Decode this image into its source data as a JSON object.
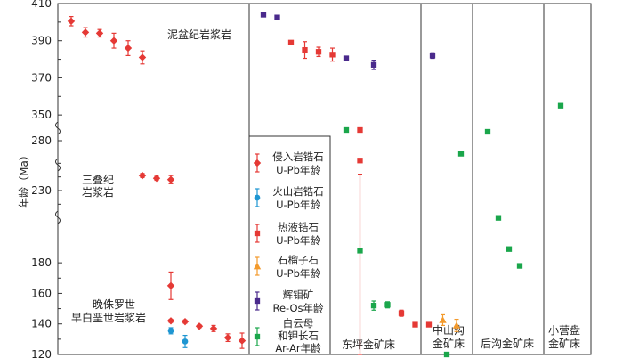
{
  "chart_data": {
    "type": "scatter",
    "ylabel": "年龄（Ma）",
    "y_ticks": [
      "410",
      "390",
      "370",
      "350",
      "280",
      "230",
      "180",
      "160",
      "140",
      "120"
    ],
    "y_axis_breaks": [
      "350–280",
      "280–230",
      "230–180"
    ],
    "panels": [
      {
        "label": "",
        "sublabels": [
          "泥盆纪岩浆岩",
          "三叠纪",
          "岩浆岩",
          "晚侏罗世–",
          "早白垩世岩浆岩"
        ]
      },
      {
        "label": "东坪金矿床"
      },
      {
        "label": "中山沟",
        "label2": "金矿床"
      },
      {
        "label": "后沟金矿床"
      },
      {
        "label": "小营盘",
        "label2": "金矿床"
      }
    ],
    "legend": [
      {
        "marker": "diamond",
        "color": "#e53935",
        "line1": "侵入岩锆石",
        "line2": "U-Pb年龄"
      },
      {
        "marker": "circle",
        "color": "#1e96d2",
        "line1": "火山岩锆石",
        "line2": "U-Pb年龄"
      },
      {
        "marker": "square",
        "color": "#e53935",
        "line1": "热液锆石",
        "line2": "U-Pb年龄"
      },
      {
        "marker": "triangle",
        "color": "#f39a2c",
        "line1": "石榴子石",
        "line2": "U-Pb年龄"
      },
      {
        "marker": "square",
        "color": "#4a2a8c",
        "line1": "辉钼矿",
        "line2": "Re-Os年龄"
      },
      {
        "marker": "square",
        "color": "#1aa64b",
        "line1": "白云母",
        "line2": "和钾长石",
        "line3": "Ar-Ar年龄"
      }
    ],
    "series": [
      {
        "name": "侵入岩锆石U-Pb年龄",
        "marker": "diamond",
        "color": "#e53935",
        "points": [
          {
            "panel": 0,
            "x": 1,
            "age": 400.5,
            "err": 2.5
          },
          {
            "panel": 0,
            "x": 2,
            "age": 394.5,
            "err": 2.5
          },
          {
            "panel": 0,
            "x": 3,
            "age": 394,
            "err": 2
          },
          {
            "panel": 0,
            "x": 4,
            "age": 390,
            "err": 4
          },
          {
            "panel": 0,
            "x": 5,
            "age": 386,
            "err": 4
          },
          {
            "panel": 0,
            "x": 6,
            "age": 381,
            "err": 3.5
          },
          {
            "panel": 0,
            "x": 6,
            "age": 241,
            "err": 1.5
          },
          {
            "panel": 0,
            "x": 7,
            "age": 239,
            "err": 1.5
          },
          {
            "panel": 0,
            "x": 8,
            "age": 238,
            "err": 3
          },
          {
            "panel": 0,
            "x": 8,
            "age": 165,
            "err": 9
          },
          {
            "panel": 0,
            "x": 8,
            "age": 142,
            "err": 1
          },
          {
            "panel": 0,
            "x": 9,
            "age": 141.5,
            "err": 1
          },
          {
            "panel": 0,
            "x": 10,
            "age": 138.5,
            "err": 1
          },
          {
            "panel": 0,
            "x": 11,
            "age": 137,
            "err": 2
          },
          {
            "panel": 0,
            "x": 12,
            "age": 131,
            "err": 2.5
          },
          {
            "panel": 0,
            "x": 13,
            "age": 129,
            "err": 5
          }
        ]
      },
      {
        "name": "火山岩锆石U-Pb年龄",
        "marker": "circle",
        "color": "#1e96d2",
        "points": [
          {
            "panel": 0,
            "x": 8,
            "age": 135.5,
            "err": 2
          },
          {
            "panel": 0,
            "x": 9,
            "age": 128.5,
            "err": 4
          }
        ]
      },
      {
        "name": "热液锆石U-Pb年龄",
        "marker": "square",
        "color": "#e53935",
        "points": [
          {
            "panel": 1,
            "x": 3,
            "age": 389,
            "err": 0
          },
          {
            "panel": 1,
            "x": 4,
            "age": 385,
            "err": 4.5
          },
          {
            "panel": 1,
            "x": 5,
            "age": 384,
            "err": 2.5
          },
          {
            "panel": 1,
            "x": 6,
            "age": 382.5,
            "err": 3.5
          },
          {
            "panel": 1,
            "x": 8,
            "age": 286,
            "err": 0
          },
          {
            "panel": 1,
            "x": 8,
            "age": 252,
            "err": 10
          },
          {
            "panel": 1,
            "x": 11,
            "age": 147,
            "err": 2
          },
          {
            "panel": 1,
            "x": 12,
            "age": 139.5,
            "err": 0
          },
          {
            "panel": 1,
            "x": 13,
            "age": 139.5,
            "err": 0
          }
        ]
      },
      {
        "name": "石榴子石U-Pb年龄",
        "marker": "triangle",
        "color": "#f39a2c",
        "points": [
          {
            "panel": 1,
            "x": 14,
            "age": 142.5,
            "err": 3.5
          },
          {
            "panel": 1,
            "x": 15,
            "age": 139,
            "err": 4
          }
        ]
      },
      {
        "name": "辉钼矿Re-Os年龄",
        "marker": "square",
        "color": "#4a2a8c",
        "points": [
          {
            "panel": 1,
            "x": 1,
            "age": 404,
            "err": 0
          },
          {
            "panel": 1,
            "x": 2,
            "age": 402.5,
            "err": 0
          },
          {
            "panel": 1,
            "x": 7,
            "age": 380.5,
            "err": 0
          },
          {
            "panel": 1,
            "x": 9,
            "age": 377,
            "err": 2.5
          },
          {
            "panel": 2,
            "x": 1,
            "age": 382,
            "err": 1.5
          }
        ]
      },
      {
        "name": "白云母和钾长石Ar-Ar年龄",
        "marker": "square",
        "color": "#1aa64b",
        "points": [
          {
            "panel": 1,
            "x": 7,
            "age": 286,
            "err": 0
          },
          {
            "panel": 1,
            "x": 8,
            "age": 188,
            "err": 0
          },
          {
            "panel": 1,
            "x": 9,
            "age": 152,
            "err": 3
          },
          {
            "panel": 1,
            "x": 10,
            "age": 152.5,
            "err": 2
          },
          {
            "panel": 2,
            "x": 2,
            "age": 262,
            "err": 0
          },
          {
            "panel": 2,
            "x": 3,
            "age": 257,
            "err": 0
          },
          {
            "panel": 3,
            "x": 1,
            "age": 285,
            "err": 0
          },
          {
            "panel": 3,
            "x": 2,
            "age": 210,
            "err": 0
          },
          {
            "panel": 3,
            "x": 3,
            "age": 189,
            "err": 0
          },
          {
            "panel": 3,
            "x": 4,
            "age": 178,
            "err": 0
          },
          {
            "panel": 4,
            "x": 1,
            "age": 355,
            "err": 0
          }
        ]
      }
    ]
  }
}
